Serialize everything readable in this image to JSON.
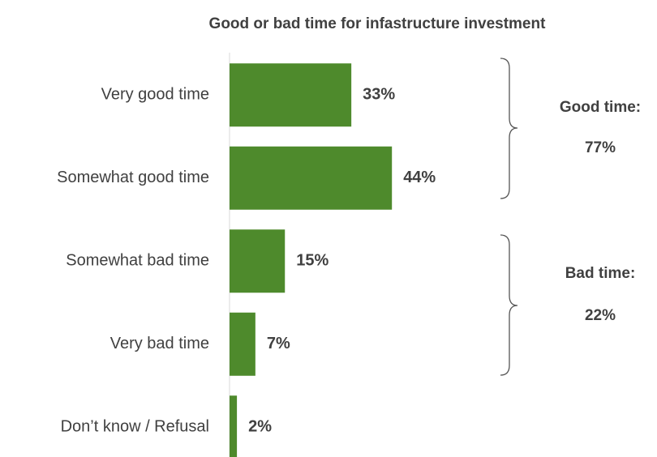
{
  "chart_data": {
    "type": "bar",
    "orientation": "horizontal",
    "title": "Good or bad time for infastructure investment",
    "categories": [
      "Very good time",
      "Somewhat good time",
      "Somewhat bad time",
      "Very bad time",
      "Don’t know / Refusal"
    ],
    "values": [
      33,
      44,
      15,
      7,
      2
    ],
    "value_labels": [
      "33%",
      "44%",
      "15%",
      "7%",
      "2%"
    ],
    "color": "#4e8a2c",
    "xlim": [
      0,
      100
    ],
    "annotations": [
      {
        "label": "Good time:",
        "total": "77%"
      },
      {
        "label": "Bad time:",
        "total": "22%"
      }
    ]
  }
}
